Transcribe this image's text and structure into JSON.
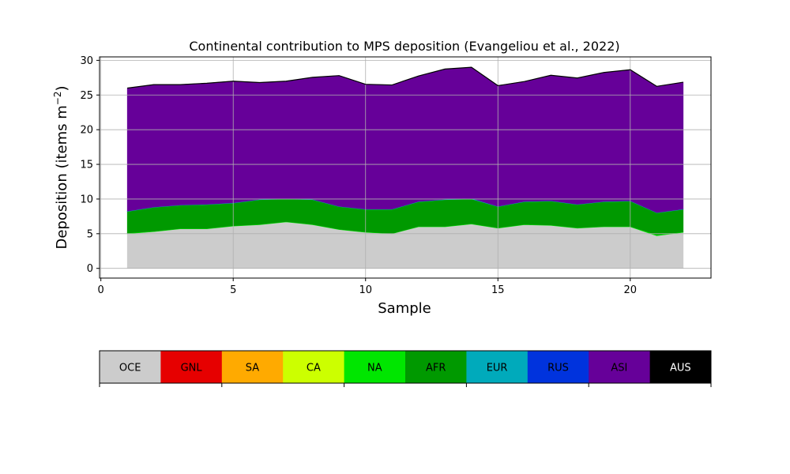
{
  "chart_data": {
    "type": "area",
    "stacked": true,
    "title": "Continental contribution to MPS deposition (Evangeliou et al., 2022)",
    "xlabel": "Sample",
    "ylabel": "Deposition (items m",
    "ylabel_exponent": "−2",
    "ylabel_close": ")",
    "xlim": [
      -0.05,
      23.05
    ],
    "ylim": [
      -1.4,
      30.5
    ],
    "xticks": [
      0,
      5,
      10,
      15,
      20
    ],
    "yticks": [
      0,
      5,
      10,
      15,
      20,
      25,
      30
    ],
    "grid": true,
    "x": [
      1,
      2,
      3,
      4,
      5,
      6,
      7,
      8,
      9,
      10,
      11,
      12,
      13,
      14,
      15,
      16,
      17,
      18,
      19,
      20,
      21,
      22
    ],
    "series": [
      {
        "name": "OCE",
        "color": "#cccccc",
        "values": [
          5.0,
          5.3,
          5.7,
          5.7,
          6.1,
          6.3,
          6.7,
          6.3,
          5.6,
          5.2,
          5.0,
          6.0,
          6.0,
          6.4,
          5.8,
          6.3,
          6.2,
          5.8,
          6.0,
          6.0,
          4.7,
          5.2
        ]
      },
      {
        "name": "GNL",
        "color": "#e60000",
        "values": [
          0,
          0,
          0,
          0,
          0,
          0,
          0,
          0,
          0,
          0,
          0,
          0,
          0,
          0,
          0,
          0,
          0,
          0,
          0,
          0,
          0,
          0
        ]
      },
      {
        "name": "SA",
        "color": "#ffaa00",
        "values": [
          0,
          0,
          0,
          0,
          0,
          0,
          0,
          0,
          0,
          0,
          0,
          0,
          0,
          0,
          0,
          0,
          0,
          0,
          0,
          0,
          0,
          0
        ]
      },
      {
        "name": "CA",
        "color": "#ccff00",
        "values": [
          0,
          0,
          0,
          0,
          0,
          0,
          0,
          0,
          0,
          0,
          0,
          0,
          0,
          0,
          0,
          0,
          0,
          0,
          0,
          0,
          0,
          0
        ]
      },
      {
        "name": "NA",
        "color": "#00e600",
        "values": [
          0.1,
          0.05,
          0.05,
          0.05,
          0.05,
          0.05,
          0.05,
          0.05,
          0.05,
          0.05,
          0.05,
          0.05,
          0.05,
          0.05,
          0.05,
          0.05,
          0.05,
          0.05,
          0.05,
          0.05,
          0.15,
          0.05
        ]
      },
      {
        "name": "AFR",
        "color": "#009900",
        "values": [
          3.1,
          3.45,
          3.35,
          3.45,
          3.25,
          3.55,
          3.25,
          3.55,
          3.25,
          3.25,
          3.45,
          3.55,
          3.85,
          3.55,
          3.05,
          3.25,
          3.45,
          3.35,
          3.55,
          3.65,
          3.15,
          3.25
        ]
      },
      {
        "name": "EUR",
        "color": "#00aabb",
        "values": [
          0.05,
          0.05,
          0.05,
          0.05,
          0.05,
          0.05,
          0.05,
          0.05,
          0.05,
          0.05,
          0.05,
          0.05,
          0.05,
          0.1,
          0.05,
          0.05,
          0.05,
          0.05,
          0.05,
          0.05,
          0.05,
          0.05
        ]
      },
      {
        "name": "RUS",
        "color": "#0033dd",
        "values": [
          0,
          0,
          0,
          0,
          0,
          0,
          0,
          0,
          0,
          0,
          0,
          0,
          0,
          0,
          0,
          0,
          0,
          0,
          0,
          0,
          0,
          0
        ]
      },
      {
        "name": "ASI",
        "color": "#660099",
        "values": [
          17.75,
          17.65,
          17.35,
          17.45,
          17.55,
          16.85,
          16.95,
          17.6,
          18.85,
          18.0,
          17.9,
          18.1,
          18.8,
          18.9,
          17.4,
          17.3,
          18.1,
          18.2,
          18.6,
          18.9,
          18.2,
          18.3
        ]
      },
      {
        "name": "AUS",
        "color": "#000000",
        "values": [
          0,
          0,
          0,
          0,
          0,
          0,
          0,
          0,
          0,
          0,
          0,
          0,
          0,
          0,
          0,
          0,
          0,
          0,
          0,
          0,
          0,
          0
        ]
      }
    ],
    "legend_labels": [
      "OCE",
      "GNL",
      "SA",
      "CA",
      "NA",
      "AFR",
      "EUR",
      "RUS",
      "ASI",
      "AUS"
    ]
  }
}
